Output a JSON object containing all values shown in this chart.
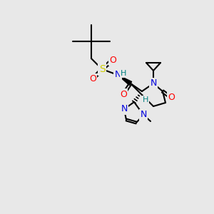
{
  "bg_color": "#e8e8e8",
  "bond_color": "#000000",
  "bond_width": 1.5,
  "atom_colors": {
    "N": "#0000dd",
    "O": "#ff0000",
    "S": "#cccc00",
    "H": "#008080",
    "C": "#000000"
  },
  "figsize": [
    3.0,
    3.0
  ],
  "dpi": 100,
  "xlim": [
    0,
    300
  ],
  "ylim": [
    0,
    300
  ]
}
